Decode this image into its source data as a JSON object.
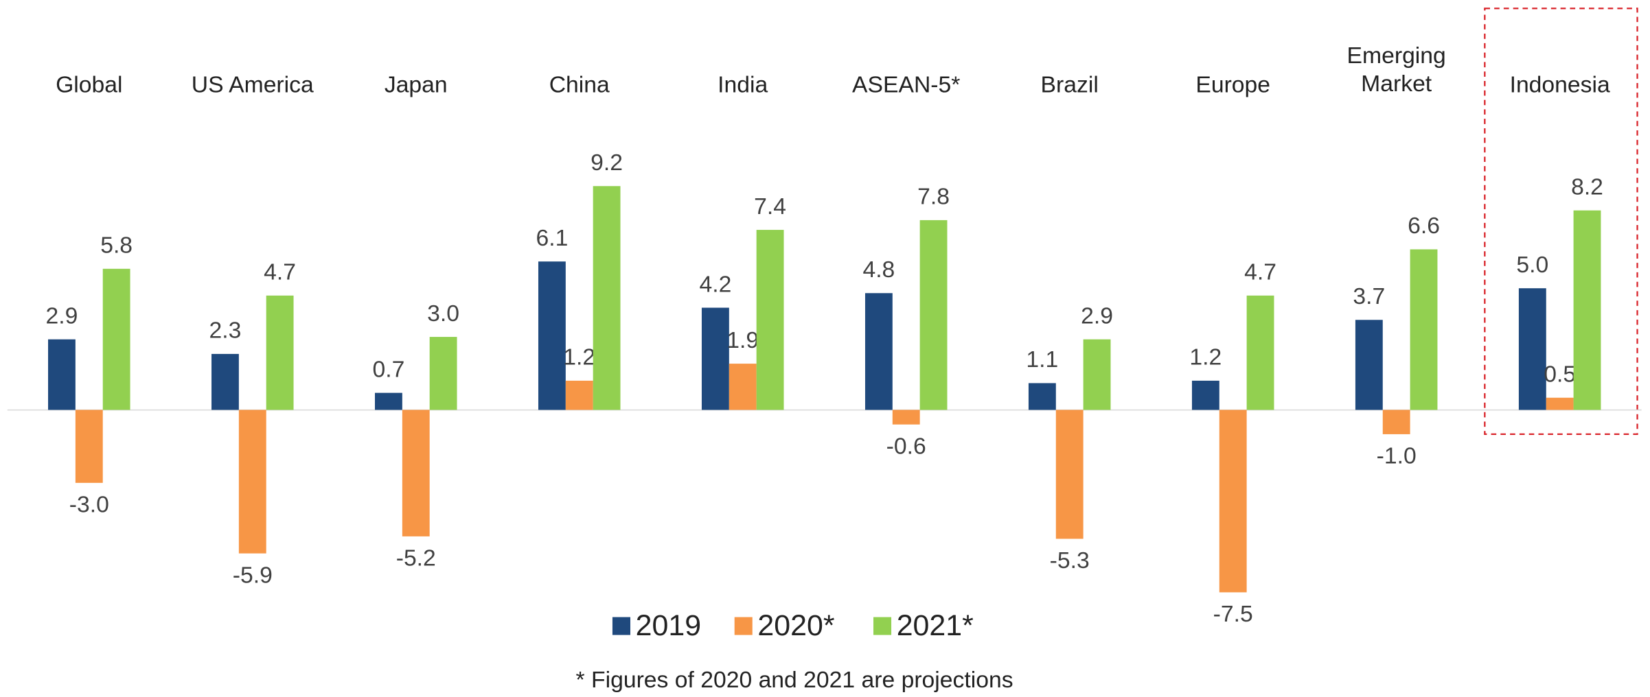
{
  "chart_data": {
    "type": "bar",
    "categories": [
      "Global",
      "US America",
      "Japan",
      "China",
      "India",
      "ASEAN-5*",
      "Brazil",
      "Europe",
      "Emerging Market",
      "Indonesia"
    ],
    "series": [
      {
        "name": "2019",
        "color": "#1f497d",
        "values": [
          2.9,
          2.3,
          0.7,
          6.1,
          4.2,
          4.8,
          1.1,
          1.2,
          3.7,
          5.0
        ],
        "value_labels": [
          "2.9",
          "2.3",
          "0.7",
          "6.1",
          "4.2",
          "4.8",
          "1.1",
          "1.2",
          "3.7",
          "5.0"
        ]
      },
      {
        "name": "2020*",
        "color": "#f79646",
        "values": [
          -3.0,
          -5.9,
          -5.2,
          1.2,
          1.9,
          -0.6,
          -5.3,
          -7.5,
          -1.0,
          0.5
        ],
        "value_labels": [
          "-3.0",
          "-5.9",
          "-5.2",
          "1.2",
          "1.9",
          "-0.6",
          "-5.3",
          "-7.5",
          "-1.0",
          "0.5"
        ]
      },
      {
        "name": "2021*",
        "color": "#92d050",
        "values": [
          5.8,
          4.7,
          3.0,
          9.2,
          7.4,
          7.8,
          2.9,
          4.7,
          6.6,
          8.2
        ],
        "value_labels": [
          "5.8",
          "4.7",
          "3.0",
          "9.2",
          "7.4",
          "7.8",
          "2.9",
          "4.7",
          "6.6",
          "8.2"
        ]
      }
    ],
    "ylim": [
      -8,
      10
    ],
    "legend": "bottom",
    "footnote": "* Figures of 2020 and 2021 are projections"
  }
}
